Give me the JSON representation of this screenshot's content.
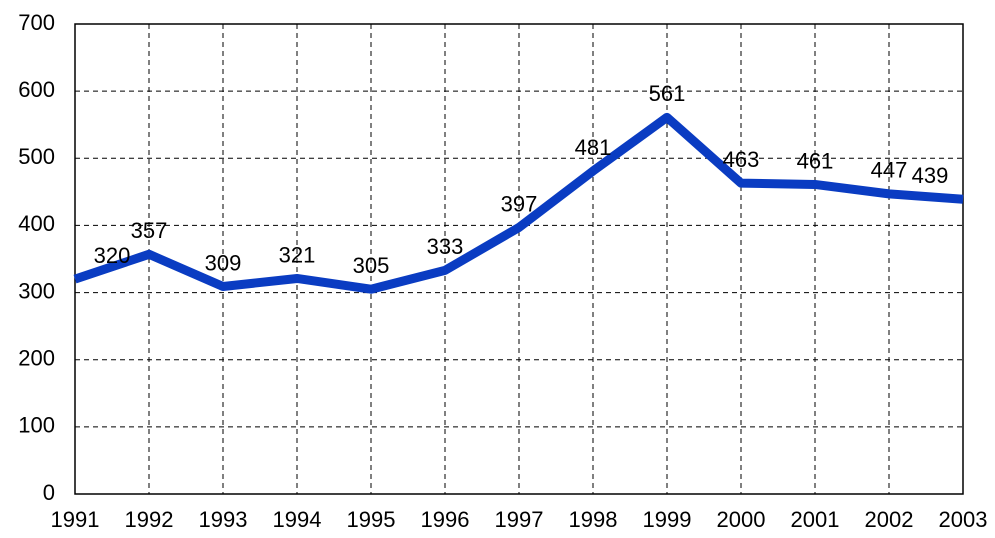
{
  "chart_data": {
    "type": "line",
    "categories": [
      "1991",
      "1992",
      "1993",
      "1994",
      "1995",
      "1996",
      "1997",
      "1998",
      "1999",
      "2000",
      "2001",
      "2002",
      "2003"
    ],
    "series": [
      {
        "name": null,
        "color": "#0a3cc2",
        "values": [
          320,
          357,
          309,
          321,
          305,
          333,
          397,
          481,
          561,
          463,
          461,
          447,
          439
        ]
      }
    ],
    "ylim": [
      0,
      700
    ],
    "yticks": [
      0,
      100,
      200,
      300,
      400,
      500,
      600,
      700
    ],
    "grid": true,
    "data_labels": true
  }
}
